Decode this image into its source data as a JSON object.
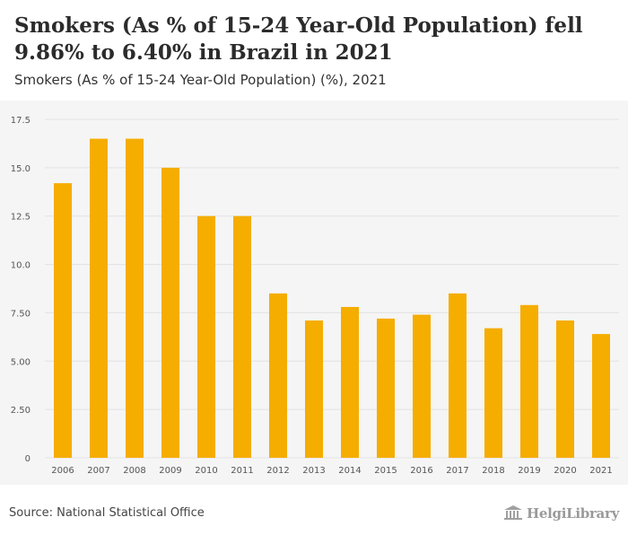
{
  "header": {
    "title": "Smokers (As % of 15-24 Year-Old Population) fell 9.86% to 6.40% in Brazil in 2021",
    "subtitle": "Smokers (As % of 15-24 Year-Old Population) (%), 2021"
  },
  "footer": {
    "source": "Source: National Statistical Office",
    "logo_text": "HelgiLibrary"
  },
  "colors": {
    "bar": "#f5ad00",
    "grid": "#e2e2e2",
    "axis_text": "#555555"
  },
  "chart_data": {
    "type": "bar",
    "title": "Smokers (As % of 15-24 Year-Old Population) fell 9.86% to 6.40% in Brazil in 2021",
    "subtitle": "Smokers (As % of 15-24 Year-Old Population) (%), 2021",
    "xlabel": "",
    "ylabel": "",
    "categories": [
      "2006",
      "2007",
      "2008",
      "2009",
      "2010",
      "2011",
      "2012",
      "2013",
      "2014",
      "2015",
      "2016",
      "2017",
      "2018",
      "2019",
      "2020",
      "2021"
    ],
    "values": [
      14.2,
      16.5,
      16.5,
      15.0,
      12.5,
      12.5,
      8.5,
      7.1,
      7.8,
      7.2,
      7.4,
      8.5,
      6.7,
      7.9,
      7.1,
      6.4
    ],
    "yticks": [
      "0",
      "2.50",
      "5.00",
      "7.50",
      "10.0",
      "12.5",
      "15.0",
      "17.5"
    ],
    "ylim": [
      0,
      17.5
    ],
    "grid": true,
    "legend": "none"
  }
}
